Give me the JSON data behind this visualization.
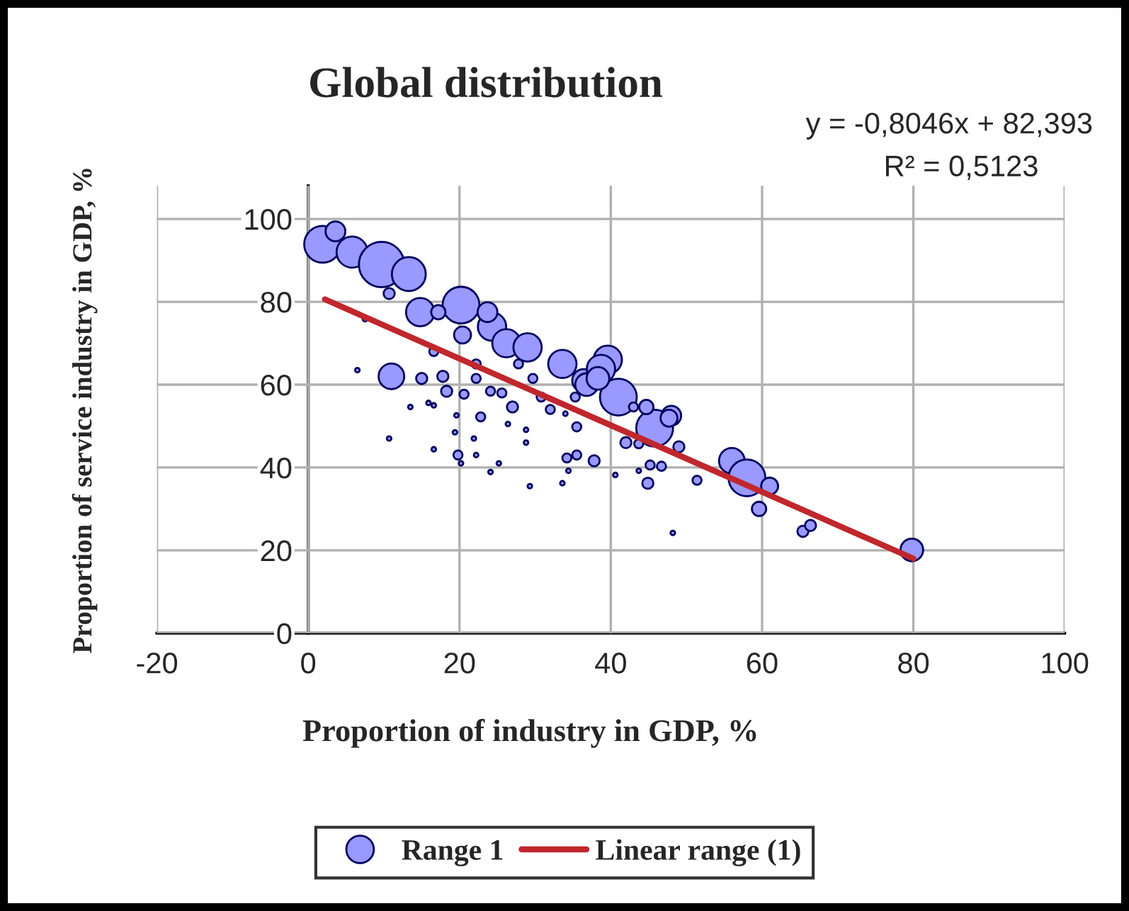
{
  "chart_data": {
    "type": "bubble",
    "title": "Global distribution",
    "xlabel": "Proportion of industry in GDP, %",
    "ylabel": "Proportion of service industry in GDP, %",
    "annotations": [
      "y = -0,8046x + 82,393",
      "R² = 0,5123"
    ],
    "xlim": [
      -20,
      100
    ],
    "xticks": [
      -20,
      0,
      20,
      40,
      60,
      80,
      100
    ],
    "ylim": [
      0,
      108
    ],
    "yticks": [
      0,
      20,
      40,
      60,
      80,
      100
    ],
    "grid": true,
    "legend": "bottom",
    "series": [
      {
        "name": "Range 1",
        "color": "#9999ff",
        "x": [
          1.9,
          3.6,
          5.8,
          9.7,
          13.3,
          10.7,
          14.8,
          20.2,
          24.3,
          23.7,
          26.2,
          29,
          33.6,
          39.6,
          41,
          36.4,
          20.4,
          17.2,
          11,
          15,
          17.8,
          18.3,
          20.6,
          22.2,
          24.1,
          27,
          6.5,
          13.5,
          22.8,
          16.6,
          22.2,
          27.8,
          29.7,
          30.8,
          35.3,
          43,
          7.5,
          25.6,
          15.9,
          16.6,
          10.7,
          19.6,
          26.4,
          19.4,
          21.9,
          28.8,
          28.8,
          16.6,
          19.8,
          20.2,
          22.2,
          24.1,
          25.2,
          29.3,
          34.2,
          35.5,
          37.8,
          34.4,
          33.6,
          35.5,
          40.6,
          32,
          34,
          38.7,
          36.8,
          38.3,
          45.8,
          48,
          44.7,
          42,
          43.7,
          49,
          45.2,
          46.7,
          44.9,
          51.4,
          43.7,
          48.2,
          56,
          58,
          61,
          59.6,
          65.4,
          66.4,
          79.8,
          47.7
        ],
        "values": [
          93.9,
          97,
          92,
          89,
          86.7,
          82,
          77.5,
          79.2,
          74,
          77.5,
          70,
          69,
          65,
          66,
          57,
          61,
          72,
          77.5,
          62,
          61.5,
          62,
          58.4,
          57.7,
          61.5,
          58.4,
          54.6,
          63.5,
          54.6,
          52.2,
          68,
          65,
          65,
          61.5,
          57,
          57,
          54.6,
          75.8,
          58,
          55.6,
          55,
          47,
          52.6,
          50.5,
          48.5,
          47,
          49.1,
          46,
          44.4,
          43,
          41,
          43,
          38.9,
          41,
          35.5,
          42.3,
          43,
          41.6,
          39.2,
          36.2,
          49.8,
          38.2,
          54,
          53,
          63.8,
          60,
          61.5,
          49.5,
          52.5,
          54.6,
          46,
          45.7,
          45,
          40.6,
          40.3,
          36.2,
          36.9,
          39.2,
          24.2,
          41.6,
          37.5,
          35.5,
          30,
          24.6,
          26,
          20.1,
          51.9
        ],
        "sizes": [
          0.66,
          0.19,
          0.47,
          1,
          0.56,
          0.06,
          0.39,
          0.66,
          0.39,
          0.19,
          0.39,
          0.39,
          0.39,
          0.39,
          0.66,
          0.25,
          0.14,
          0.1,
          0.32,
          0.06,
          0.06,
          0.06,
          0.04,
          0.04,
          0.04,
          0.06,
          0.01,
          0.01,
          0.04,
          0.04,
          0.04,
          0.04,
          0.04,
          0.04,
          0.04,
          0.04,
          0.01,
          0.04,
          0.01,
          0.01,
          0.01,
          0.01,
          0.01,
          0.01,
          0.01,
          0.01,
          0.01,
          0.01,
          0.04,
          0.01,
          0.01,
          0.01,
          0.01,
          0.01,
          0.04,
          0.04,
          0.06,
          0.01,
          0.01,
          0.04,
          0.01,
          0.04,
          0.01,
          0.39,
          0.25,
          0.25,
          0.66,
          0.19,
          0.1,
          0.06,
          0.04,
          0.06,
          0.04,
          0.04,
          0.06,
          0.04,
          0.01,
          0.01,
          0.32,
          0.66,
          0.14,
          0.1,
          0.06,
          0.06,
          0.25,
          0.14
        ]
      },
      {
        "name": "Linear range (1)",
        "type": "line",
        "color": "#c0272d",
        "x": [
          2.2,
          80
        ],
        "values": [
          80.6,
          18.0
        ]
      }
    ]
  }
}
